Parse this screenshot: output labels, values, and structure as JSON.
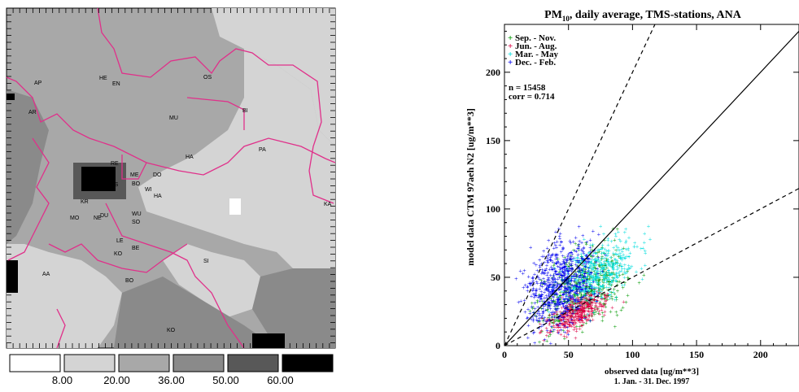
{
  "map": {
    "region_labels": [
      "AP",
      "HE",
      "EN",
      "OS",
      "AR",
      "BI",
      "MU",
      "PA",
      "HA",
      "RE",
      "ME",
      "DO",
      "ES",
      "BO",
      "WI",
      "HA",
      "KR",
      "KA",
      "MO",
      "NE",
      "DU",
      "WU",
      "SO",
      "LE",
      "BE",
      "KO",
      "SI",
      "AA",
      "BO",
      "KO"
    ],
    "legend": {
      "tick_labels": [
        "8.00",
        "20.00",
        "36.00",
        "50.00",
        "60.00"
      ],
      "class_colors": [
        "#ffffff",
        "#d4d4d4",
        "#a8a8a8",
        "#8a8a8a",
        "#585858",
        "#000000"
      ]
    },
    "colors": {
      "border": "#e0308a",
      "land_light": "#d4d4d4",
      "land_mid": "#a8a8a8",
      "land_dark": "#8a8a8a"
    }
  },
  "chart_data": {
    "type": "scatter",
    "title_main": "PM",
    "title_sub": "10",
    "title_rest": ", daily average, TMS-stations, ANA",
    "xlabel": "observed data  [ug/m**3]",
    "xlabel2": "1. Jan. -  31. Dec. 1997",
    "ylabel": "model data CTM 97aeh N2  [ug/m**3]",
    "xlim": [
      0,
      230
    ],
    "ylim": [
      0,
      235
    ],
    "x_ticks": [
      "0",
      "50",
      "100",
      "150",
      "200"
    ],
    "y_ticks": [
      "0",
      "50",
      "100",
      "150",
      "200"
    ],
    "annotations": [
      "n = 15458",
      "corr = 0.714"
    ],
    "series": [
      {
        "name": "Sep. - Nov.",
        "color": "#009900",
        "center": [
          60,
          42
        ],
        "spread": [
          35,
          25
        ]
      },
      {
        "name": "Jun. - Aug.",
        "color": "#dd0044",
        "center": [
          58,
          25
        ],
        "spread": [
          22,
          12
        ]
      },
      {
        "name": "Mar. - May",
        "color": "#00dddd",
        "center": [
          75,
          55
        ],
        "spread": [
          30,
          20
        ]
      },
      {
        "name": "Dec. - Feb.",
        "color": "#0000ee",
        "center": [
          45,
          45
        ],
        "spread": [
          25,
          30
        ]
      }
    ],
    "reference_lines": [
      "1:1",
      "1:2",
      "2:1"
    ]
  }
}
